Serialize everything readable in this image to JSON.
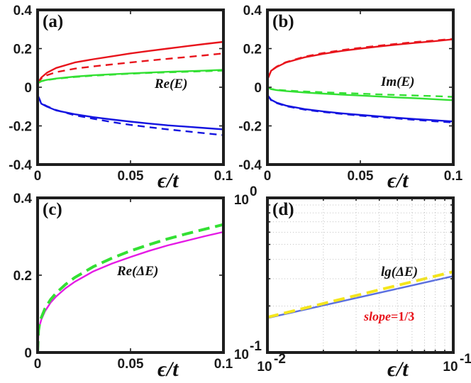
{
  "chart_data": [
    {
      "type": "line",
      "panel_label": "(a)",
      "annotation": "Re(E)",
      "xlabel": "ϵ/t",
      "xlim": [
        0,
        0.1
      ],
      "ylim": [
        -0.4,
        0.4
      ],
      "x_ticks": [
        0,
        0.05,
        0.1
      ],
      "x_tick_labels": [
        "0",
        "0.05",
        "0.1"
      ],
      "y_ticks": [
        -0.4,
        -0.2,
        0,
        0.2,
        0.4
      ],
      "y_tick_labels": [
        "-0.4",
        "-0.2",
        "0",
        "0.2",
        "0.4"
      ],
      "x": [
        0,
        0.002,
        0.005,
        0.01,
        0.02,
        0.03,
        0.04,
        0.05,
        0.06,
        0.07,
        0.08,
        0.09,
        0.1
      ],
      "series": [
        {
          "name": "red solid",
          "color": "#e8141c",
          "style": "solid",
          "values": [
            0.02,
            0.05,
            0.075,
            0.1,
            0.128,
            0.145,
            0.16,
            0.175,
            0.188,
            0.2,
            0.212,
            0.224,
            0.235
          ]
        },
        {
          "name": "red dashed",
          "color": "#e8141c",
          "style": "dashed",
          "values": [
            0.02,
            0.045,
            0.062,
            0.078,
            0.096,
            0.108,
            0.118,
            0.128,
            0.138,
            0.147,
            0.156,
            0.165,
            0.175
          ]
        },
        {
          "name": "green solid",
          "color": "#33e033",
          "style": "solid",
          "values": [
            0.02,
            0.032,
            0.038,
            0.045,
            0.055,
            0.062,
            0.067,
            0.072,
            0.076,
            0.08,
            0.083,
            0.086,
            0.09
          ]
        },
        {
          "name": "green dashed",
          "color": "#33e033",
          "style": "dashed",
          "values": [
            0.02,
            0.031,
            0.037,
            0.044,
            0.053,
            0.06,
            0.065,
            0.07,
            0.074,
            0.077,
            0.08,
            0.083,
            0.086
          ]
        },
        {
          "name": "blue solid",
          "color": "#1414e0",
          "style": "solid",
          "values": [
            -0.04,
            -0.085,
            -0.1,
            -0.12,
            -0.14,
            -0.155,
            -0.167,
            -0.178,
            -0.188,
            -0.197,
            -0.204,
            -0.211,
            -0.218
          ]
        },
        {
          "name": "blue dashed",
          "color": "#1414e0",
          "style": "dashed",
          "values": [
            -0.04,
            -0.083,
            -0.098,
            -0.118,
            -0.145,
            -0.163,
            -0.18,
            -0.195,
            -0.207,
            -0.218,
            -0.228,
            -0.238,
            -0.248
          ]
        }
      ]
    },
    {
      "type": "line",
      "panel_label": "(b)",
      "annotation": "Im(E)",
      "xlabel": "ϵ/t",
      "xlim": [
        0,
        0.1
      ],
      "ylim": [
        -0.4,
        0.4
      ],
      "x_ticks": [
        0,
        0.05,
        0.1
      ],
      "x_tick_labels": [
        "0",
        "0.05",
        "0.1"
      ],
      "y_ticks": [
        -0.4,
        -0.2,
        0,
        0.2,
        0.4
      ],
      "y_tick_labels": [
        "-0.4",
        "-0.2",
        "0",
        "0.2",
        "0.4"
      ],
      "x": [
        0,
        0.002,
        0.005,
        0.01,
        0.02,
        0.03,
        0.04,
        0.05,
        0.06,
        0.07,
        0.08,
        0.09,
        0.1
      ],
      "series": [
        {
          "name": "red solid",
          "color": "#e8141c",
          "style": "solid",
          "values": [
            0.04,
            0.085,
            0.105,
            0.128,
            0.155,
            0.173,
            0.188,
            0.2,
            0.211,
            0.221,
            0.23,
            0.238,
            0.248
          ]
        },
        {
          "name": "red dashed",
          "color": "#e8141c",
          "style": "dashed",
          "values": [
            0.04,
            0.086,
            0.107,
            0.13,
            0.158,
            0.177,
            0.192,
            0.204,
            0.215,
            0.225,
            0.234,
            0.242,
            0.25
          ]
        },
        {
          "name": "green solid",
          "color": "#33e033",
          "style": "solid",
          "values": [
            0.0,
            -0.01,
            -0.015,
            -0.02,
            -0.027,
            -0.033,
            -0.038,
            -0.043,
            -0.048,
            -0.053,
            -0.057,
            -0.062,
            -0.067
          ]
        },
        {
          "name": "green dashed",
          "color": "#33e033",
          "style": "dashed",
          "values": [
            0.0,
            -0.009,
            -0.013,
            -0.017,
            -0.022,
            -0.026,
            -0.03,
            -0.033,
            -0.037,
            -0.04,
            -0.043,
            -0.046,
            -0.05
          ]
        },
        {
          "name": "blue solid",
          "color": "#1414e0",
          "style": "solid",
          "values": [
            -0.04,
            -0.065,
            -0.08,
            -0.095,
            -0.113,
            -0.125,
            -0.135,
            -0.143,
            -0.151,
            -0.158,
            -0.165,
            -0.171,
            -0.177
          ]
        },
        {
          "name": "blue dashed",
          "color": "#1414e0",
          "style": "dashed",
          "values": [
            -0.04,
            -0.067,
            -0.082,
            -0.098,
            -0.116,
            -0.128,
            -0.138,
            -0.147,
            -0.155,
            -0.162,
            -0.169,
            -0.176,
            -0.182
          ]
        }
      ]
    },
    {
      "type": "line",
      "panel_label": "(c)",
      "annotation": "Re(ΔE)",
      "xlabel": "ϵ/t",
      "xlim": [
        0,
        0.1
      ],
      "ylim": [
        0,
        0.4
      ],
      "x_ticks": [
        0,
        0.05,
        0.1
      ],
      "x_tick_labels": [
        "0",
        "0.05",
        "0.1"
      ],
      "y_ticks": [
        0,
        0.2,
        0.4
      ],
      "y_tick_labels": [
        "0",
        "0.2",
        "0.4"
      ],
      "x": [
        0,
        0.0005,
        0.001,
        0.002,
        0.004,
        0.007,
        0.01,
        0.015,
        0.02,
        0.03,
        0.04,
        0.05,
        0.06,
        0.07,
        0.08,
        0.09,
        0.1
      ],
      "series": [
        {
          "name": "magenta solid",
          "color": "#e51ae5",
          "style": "solid",
          "values": [
            0.0,
            0.054,
            0.068,
            0.085,
            0.107,
            0.129,
            0.145,
            0.166,
            0.183,
            0.21,
            0.23,
            0.247,
            0.263,
            0.277,
            0.289,
            0.301,
            0.312
          ]
        },
        {
          "name": "green dashed",
          "color": "#33e033",
          "style": "dashed",
          "values": [
            0.0,
            0.057,
            0.072,
            0.09,
            0.114,
            0.137,
            0.154,
            0.176,
            0.194,
            0.222,
            0.244,
            0.263,
            0.279,
            0.294,
            0.307,
            0.319,
            0.331
          ]
        }
      ]
    },
    {
      "type": "line",
      "scale": "log-log",
      "panel_label": "(d)",
      "annotation": "lg(ΔE)",
      "slope_label": "slope",
      "slope_value": "=1/3",
      "xlabel": "ϵ/t",
      "xlim": [
        0.01,
        0.1
      ],
      "ylim": [
        0.1,
        1
      ],
      "x_ticks": [
        0.01,
        0.1
      ],
      "y_ticks": [
        0.1,
        1
      ],
      "x_tick_labels": [
        {
          "base": "10",
          "exp": "-2"
        },
        {
          "base": "10",
          "exp": "-1"
        }
      ],
      "y_tick_labels": [
        {
          "base": "10",
          "exp": "-1"
        },
        {
          "base": "10",
          "exp": "0"
        }
      ],
      "x": [
        0.01,
        0.1
      ],
      "series": [
        {
          "name": "blue solid",
          "color": "#5a6fe0",
          "style": "solid",
          "values": [
            0.167,
            0.312
          ]
        },
        {
          "name": "yellow dashed",
          "color": "#f5e61c",
          "style": "dashed",
          "values": [
            0.169,
            0.333
          ]
        }
      ]
    }
  ]
}
